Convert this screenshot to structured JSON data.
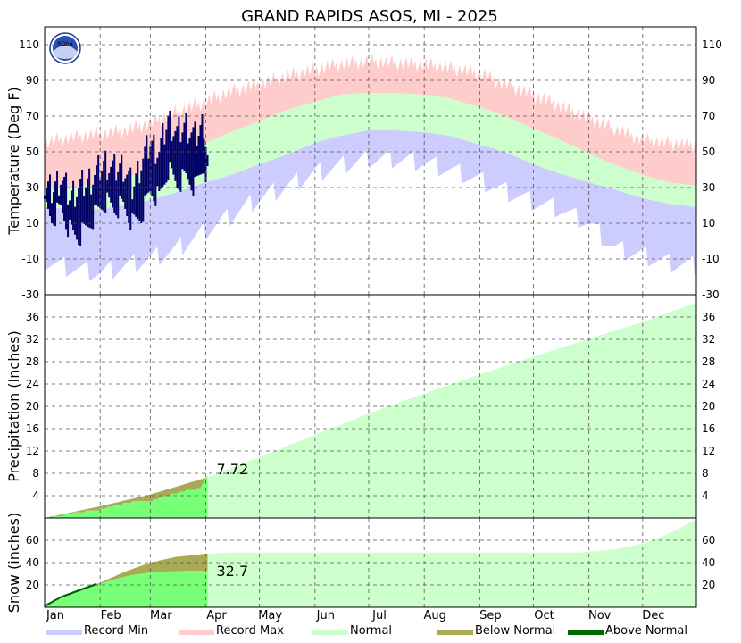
{
  "title": "GRAND RAPIDS ASOS, MI - 2025",
  "logo_text": "NOAA",
  "colors": {
    "record_min": "#ccccff",
    "record_max": "#ffcccc",
    "normal": "#ccffcc",
    "below_normal": "#aaaa55",
    "above_normal": "#006600",
    "actual_temp": "#000066",
    "actual_fill": "#77ff77"
  },
  "months": [
    "Jan",
    "Feb",
    "Mar",
    "Apr",
    "May",
    "Jun",
    "Jul",
    "Aug",
    "Sep",
    "Oct",
    "Nov",
    "Dec"
  ],
  "legend": [
    {
      "label": "Record Min",
      "color": "#ccccff"
    },
    {
      "label": "Record Max",
      "color": "#ffcccc"
    },
    {
      "label": "Normal",
      "color": "#ccffcc"
    },
    {
      "label": "Below Normal",
      "color": "#aaaa55"
    },
    {
      "label": "Above Normal",
      "color": "#006600"
    }
  ],
  "chart_data": [
    {
      "type": "area",
      "panel": "temperature",
      "ylabel": "Temperature (Deg F)",
      "ylim": [
        -30,
        120
      ],
      "yticks": [
        -30,
        -10,
        10,
        30,
        50,
        70,
        90,
        110
      ],
      "x_unit": "day_of_year",
      "grid": true,
      "series": [
        {
          "name": "Record Max",
          "x": [
            1,
            15,
            32,
            46,
            60,
            74,
            91,
            105,
            121,
            135,
            152,
            166,
            182,
            196,
            213,
            227,
            244,
            258,
            274,
            288,
            305,
            319,
            335,
            349,
            365
          ],
          "values": [
            55,
            58,
            60,
            62,
            66,
            72,
            78,
            84,
            88,
            92,
            96,
            99,
            101,
            100,
            99,
            97,
            94,
            88,
            82,
            76,
            69,
            63,
            57,
            55,
            54
          ]
        },
        {
          "name": "Normal High",
          "x": [
            1,
            15,
            32,
            46,
            60,
            74,
            91,
            105,
            121,
            135,
            152,
            166,
            182,
            196,
            213,
            227,
            244,
            258,
            274,
            288,
            305,
            319,
            335,
            349,
            365
          ],
          "values": [
            31,
            30,
            32,
            35,
            40,
            46,
            55,
            61,
            67,
            73,
            78,
            82,
            83,
            83,
            82,
            80,
            75,
            70,
            63,
            57,
            49,
            43,
            37,
            33,
            31
          ]
        },
        {
          "name": "Normal Low",
          "x": [
            1,
            15,
            32,
            46,
            60,
            74,
            91,
            105,
            121,
            135,
            152,
            166,
            182,
            196,
            213,
            227,
            244,
            258,
            274,
            288,
            305,
            319,
            335,
            349,
            365
          ],
          "values": [
            19,
            18,
            18,
            20,
            23,
            27,
            33,
            37,
            43,
            48,
            55,
            59,
            62,
            62,
            61,
            59,
            54,
            50,
            43,
            38,
            33,
            29,
            24,
            21,
            19
          ]
        },
        {
          "name": "Record Min",
          "x": [
            1,
            15,
            32,
            46,
            60,
            74,
            91,
            105,
            121,
            135,
            152,
            166,
            182,
            196,
            213,
            227,
            244,
            258,
            274,
            288,
            305,
            319,
            335,
            349,
            365
          ],
          "values": [
            -12,
            -15,
            -18,
            -14,
            -10,
            -5,
            6,
            14,
            24,
            30,
            38,
            42,
            46,
            46,
            44,
            40,
            34,
            28,
            22,
            18,
            10,
            -4,
            -8,
            -12,
            -14
          ]
        },
        {
          "name": "Actual High",
          "x": [
            1,
            5,
            10,
            15,
            20,
            25,
            30,
            35,
            40,
            45,
            50,
            55,
            60,
            65,
            70,
            75,
            80,
            85,
            90,
            92
          ],
          "values": [
            30,
            28,
            36,
            25,
            30,
            33,
            38,
            44,
            40,
            42,
            30,
            44,
            55,
            50,
            68,
            60,
            65,
            58,
            66,
            48
          ]
        },
        {
          "name": "Actual Low",
          "x": [
            1,
            5,
            10,
            15,
            20,
            25,
            30,
            35,
            40,
            45,
            50,
            55,
            60,
            65,
            70,
            75,
            80,
            85,
            90,
            92
          ],
          "values": [
            20,
            12,
            18,
            6,
            2,
            8,
            16,
            22,
            18,
            20,
            10,
            14,
            28,
            24,
            40,
            32,
            36,
            30,
            42,
            36
          ]
        }
      ]
    },
    {
      "type": "area",
      "panel": "precipitation",
      "ylabel": "Precipitation (Inches)",
      "ylim": [
        0,
        40
      ],
      "yticks": [
        4,
        8,
        12,
        16,
        20,
        24,
        28,
        32,
        36
      ],
      "grid": true,
      "annotation": "7.72",
      "series": [
        {
          "name": "Normal",
          "x": [
            1,
            32,
            60,
            91,
            121,
            152,
            182,
            213,
            244,
            274,
            305,
            335,
            365
          ],
          "values": [
            0,
            2.1,
            4.2,
            7.2,
            10.9,
            14.9,
            18.7,
            22.3,
            25.7,
            28.9,
            32.1,
            35.1,
            38.6
          ]
        },
        {
          "name": "Actual",
          "x": [
            1,
            10,
            20,
            32,
            40,
            50,
            60,
            70,
            80,
            88,
            92
          ],
          "values": [
            0,
            0.6,
            1.2,
            1.7,
            2.4,
            3.0,
            3.2,
            4.2,
            5.0,
            5.5,
            7.72
          ]
        }
      ]
    },
    {
      "type": "area",
      "panel": "snow",
      "ylabel": "Snow (inches)",
      "ylim": [
        0,
        80
      ],
      "yticks": [
        20,
        40,
        60
      ],
      "grid": true,
      "annotation": "32.7",
      "series": [
        {
          "name": "Normal",
          "x": [
            1,
            15,
            32,
            46,
            60,
            74,
            91,
            105,
            121,
            300,
            320,
            335,
            350,
            365
          ],
          "values": [
            0,
            11,
            22,
            32,
            40,
            45,
            48,
            49,
            49,
            49,
            52,
            57,
            66,
            79
          ]
        },
        {
          "name": "Actual",
          "x": [
            1,
            10,
            20,
            32,
            40,
            50,
            60,
            70,
            80,
            92
          ],
          "values": [
            0,
            8,
            14,
            21,
            25,
            29,
            31,
            32,
            32.5,
            32.7
          ]
        }
      ]
    }
  ]
}
